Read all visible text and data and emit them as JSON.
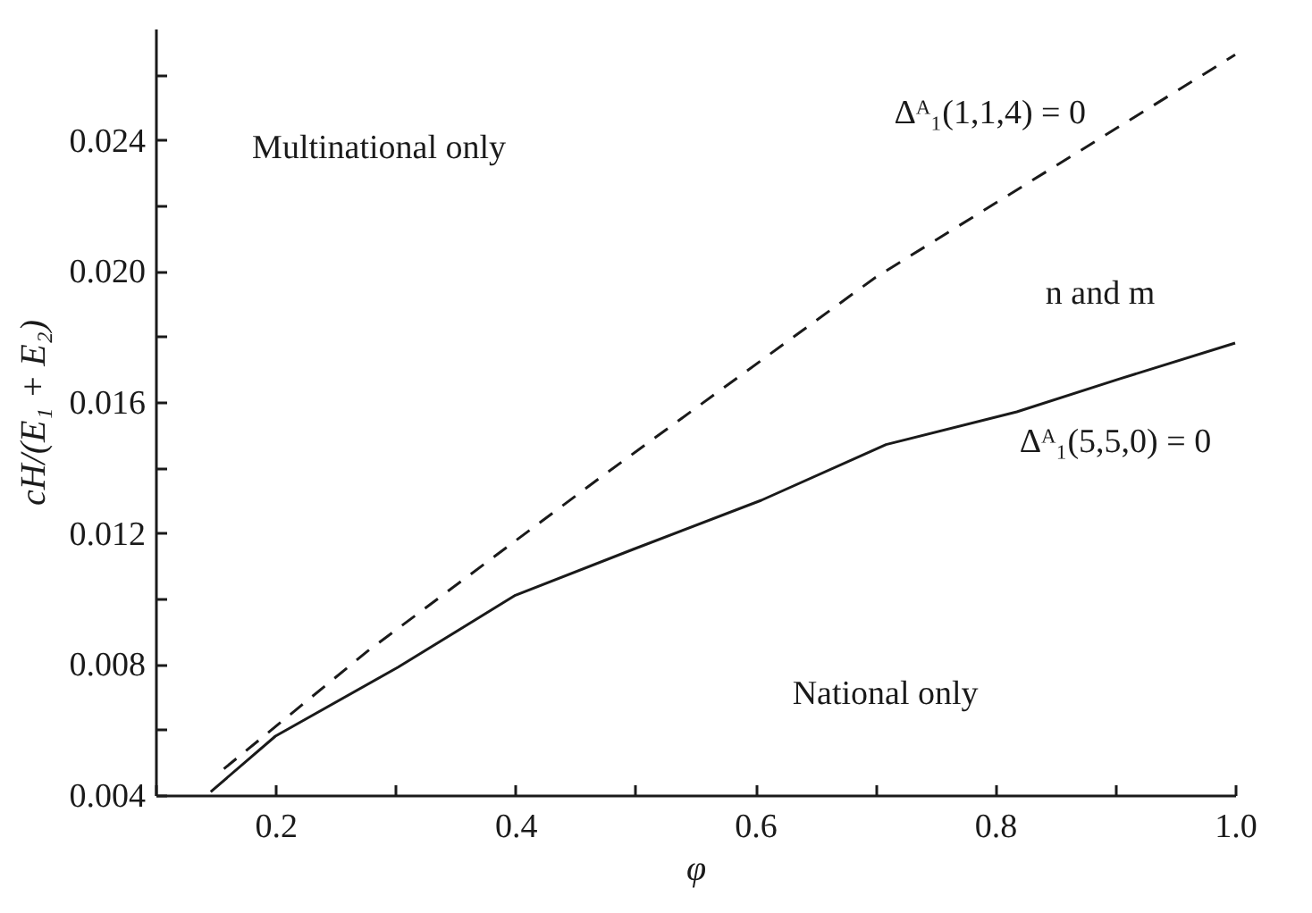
{
  "chart_data": {
    "type": "line",
    "xlabel": "φ",
    "ylabel": "cH/(E₁ + E₂)",
    "xlim": [
      0.1,
      1.0
    ],
    "ylim": [
      0.004,
      0.0274
    ],
    "xticks": [
      {
        "value": 0.1,
        "label": null
      },
      0.2,
      {
        "value": 0.3,
        "label": null
      },
      0.4,
      {
        "value": 0.5,
        "label": null
      },
      0.6,
      {
        "value": 0.7,
        "label": null
      },
      0.8,
      {
        "value": 0.9,
        "label": null
      },
      {
        "value": 1.0,
        "label": "1.0"
      }
    ],
    "yticks": [
      {
        "value": 0.004,
        "label": "0.004"
      },
      {
        "value": 0.006,
        "label": null
      },
      {
        "value": 0.008,
        "label": "0.008"
      },
      {
        "value": 0.01,
        "label": null
      },
      {
        "value": 0.012,
        "label": "0.012"
      },
      {
        "value": 0.014,
        "label": null
      },
      {
        "value": 0.016,
        "label": "0.016"
      },
      {
        "value": 0.018,
        "label": null
      },
      {
        "value": 0.02,
        "label": "0.020"
      },
      {
        "value": 0.022,
        "label": null
      },
      {
        "value": 0.024,
        "label": "0.024"
      },
      {
        "value": 0.026,
        "label": null
      }
    ],
    "grid": false,
    "legend": false,
    "marker": "none",
    "series": [
      {
        "color": "#1a1a1a",
        "line_style": "dashed",
        "x": [
          0.157,
          0.277,
          0.471,
          0.7,
          1.0
        ],
        "values": [
          0.0048,
          0.0084,
          0.0137,
          0.0198,
          0.0266
        ]
      },
      {
        "color": "#1a1a1a",
        "line_style": "solid",
        "x": [
          0.146,
          0.2,
          0.302,
          0.4,
          0.498,
          0.605,
          0.709,
          0.818,
          0.903,
          1.0
        ],
        "values": [
          0.0041,
          0.0058,
          0.0079,
          0.0101,
          0.0115,
          0.013,
          0.0147,
          0.0157,
          0.0167,
          0.0178
        ]
      }
    ],
    "annotations": [
      "Multinational only",
      "Δᴬ₁(1,1,4) = 0",
      "n and m",
      "Δᴬ₁(5,5,0) = 0",
      "National only"
    ]
  }
}
